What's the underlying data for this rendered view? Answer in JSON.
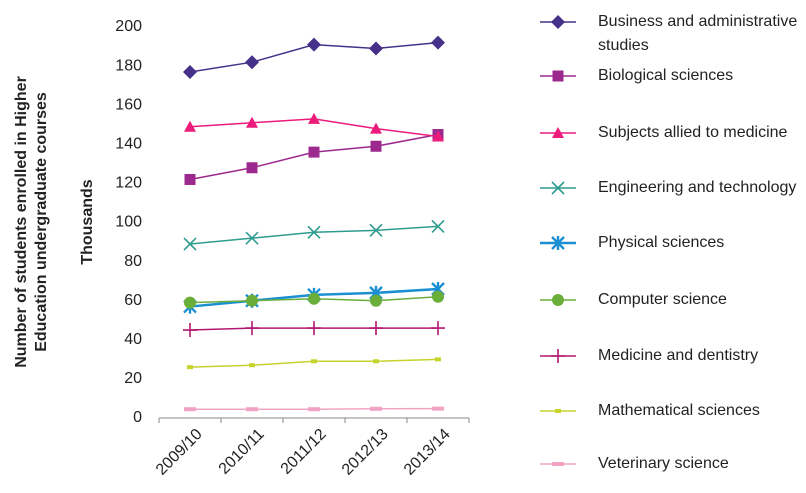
{
  "chart_data": {
    "type": "line",
    "ylabel": [
      "Number of students enrolled in Higher",
      "Education undergraduate courses",
      "Thousands"
    ],
    "categories": [
      "2009/10",
      "2010/11",
      "2011/12",
      "2012/13",
      "2013/14"
    ],
    "ylim": [
      0,
      200
    ],
    "yticks": [
      0,
      20,
      40,
      60,
      80,
      100,
      120,
      140,
      160,
      180,
      200
    ],
    "grid": false,
    "legend": "right",
    "series": [
      {
        "name": "Business and administrative studies",
        "color": "#45318a",
        "marker": "diamond",
        "values": [
          177,
          182,
          191,
          189,
          192
        ]
      },
      {
        "name": "Biological sciences",
        "color": "#9c2a8e",
        "marker": "square",
        "values": [
          122,
          128,
          136,
          139,
          145
        ]
      },
      {
        "name": "Subjects allied to medicine",
        "color": "#ec1b7c",
        "marker": "triangle",
        "values": [
          149,
          151,
          153,
          148,
          144
        ]
      },
      {
        "name": "Engineering and technology",
        "color": "#2e9c8e",
        "marker": "x",
        "values": [
          89,
          92,
          95,
          96,
          98
        ]
      },
      {
        "name": "Physical sciences",
        "color": "#1a8fd2",
        "marker": "star",
        "values": [
          57,
          60,
          63,
          64,
          66
        ]
      },
      {
        "name": "Computer science",
        "color": "#6aae3a",
        "marker": "circle",
        "values": [
          59,
          60,
          61,
          60,
          62
        ]
      },
      {
        "name": "Medicine and dentistry",
        "color": "#b3176f",
        "marker": "plus",
        "values": [
          45,
          46,
          46,
          46,
          46
        ]
      },
      {
        "name": "Mathematical sciences",
        "color": "#c5d32c",
        "marker": "smallsquare",
        "values": [
          26,
          27,
          29,
          29,
          30
        ]
      },
      {
        "name": "Veterinary science",
        "color": "#f2a3c4",
        "marker": "dash",
        "values": [
          4.5,
          4.5,
          4.5,
          4.7,
          4.8
        ]
      }
    ]
  }
}
